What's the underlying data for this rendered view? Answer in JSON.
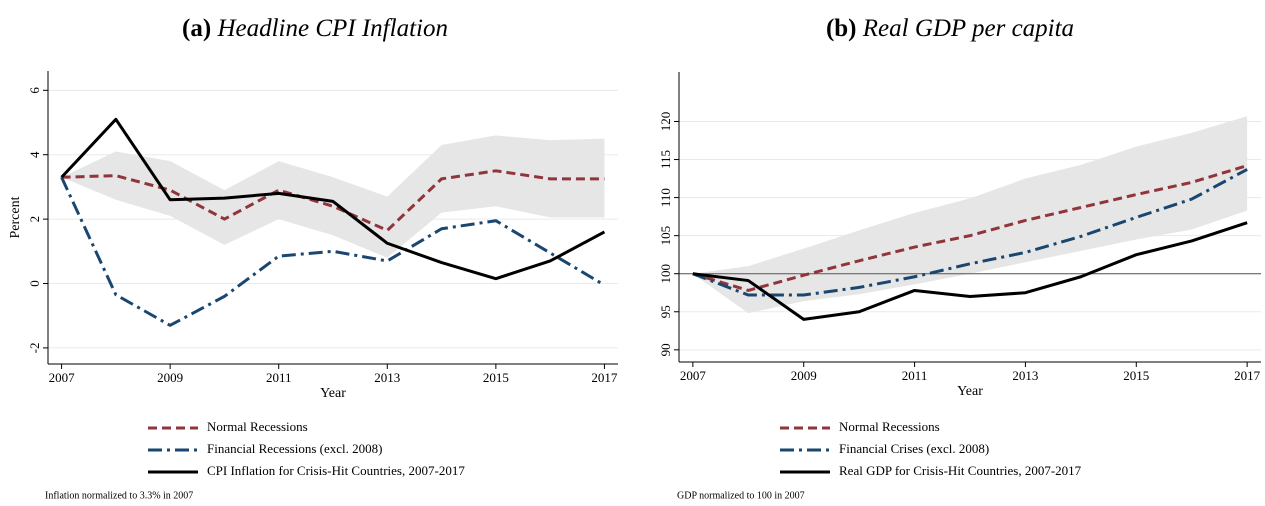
{
  "chart_data": [
    {
      "type": "line",
      "panel_label": "(a)",
      "title": "Headline CPI Inflation",
      "x": [
        2007,
        2008,
        2009,
        2010,
        2011,
        2012,
        2013,
        2014,
        2015,
        2016,
        2017
      ],
      "xlim": [
        2006.75,
        2017.25
      ],
      "xticks": [
        2007,
        2009,
        2011,
        2013,
        2015,
        2017
      ],
      "ylim": [
        -2.5,
        6.6
      ],
      "yticks": [
        -2,
        0,
        2,
        4,
        6
      ],
      "xlabel": "Year",
      "ylabel": "Percent",
      "grid": true,
      "legend": "bottom",
      "band": {
        "color": "#e6e6e6",
        "upper": [
          3.3,
          4.1,
          3.8,
          2.9,
          3.8,
          3.3,
          2.7,
          4.3,
          4.6,
          4.45,
          4.5
        ],
        "lower": [
          3.3,
          2.6,
          2.1,
          1.2,
          2.0,
          1.5,
          0.8,
          2.2,
          2.4,
          2.05,
          2.05
        ]
      },
      "series": [
        {
          "name": "Normal Recessions",
          "color": "#90353b",
          "dash": "dashed",
          "values": [
            3.3,
            3.35,
            2.9,
            2.0,
            2.9,
            2.4,
            1.65,
            3.25,
            3.5,
            3.25,
            3.25
          ]
        },
        {
          "name": "Financial Recessions (excl. 2008)",
          "color": "#1a476f",
          "dash": "dashdot",
          "values": [
            3.3,
            -0.35,
            -1.3,
            -0.4,
            0.85,
            1.0,
            0.7,
            1.7,
            1.95,
            0.95,
            -0.05
          ]
        },
        {
          "name": "CPI Inflation for Crisis-Hit Countries, 2007-2017",
          "color": "#000000",
          "dash": "solid",
          "values": [
            3.3,
            5.1,
            2.6,
            2.65,
            2.8,
            2.55,
            1.25,
            0.65,
            0.15,
            0.7,
            1.6
          ]
        }
      ],
      "note": "Inflation normalized to 3.3% in 2007"
    },
    {
      "type": "line",
      "panel_label": "(b)",
      "title": "Real GDP per capita",
      "x": [
        2007,
        2008,
        2009,
        2010,
        2011,
        2012,
        2013,
        2014,
        2015,
        2016,
        2017
      ],
      "xlim": [
        2006.75,
        2017.25
      ],
      "xticks": [
        2007,
        2009,
        2011,
        2013,
        2015,
        2017
      ],
      "ylim": [
        88.4,
        126.5
      ],
      "yticks": [
        90,
        95,
        100,
        105,
        110,
        115,
        120
      ],
      "xlabel": "Year",
      "grid": true,
      "legend": "bottom",
      "hline": 100,
      "band": {
        "color": "#e6e6e6",
        "upper": [
          100,
          101,
          103.3,
          105.7,
          108,
          109.9,
          112.5,
          114.3,
          116.7,
          118.5,
          120.7
        ],
        "lower": [
          100,
          94.8,
          96.4,
          97.3,
          98.6,
          100,
          101.5,
          103,
          104.5,
          105.8,
          108.3
        ]
      },
      "series": [
        {
          "name": "Normal Recessions",
          "color": "#90353b",
          "dash": "dashed",
          "values": [
            100,
            97.8,
            99.8,
            101.7,
            103.5,
            105,
            107,
            108.7,
            110.4,
            112,
            114.2
          ]
        },
        {
          "name": "Financial Crises (excl. 2008)",
          "color": "#1a476f",
          "dash": "dashdot",
          "values": [
            100,
            97.2,
            97.2,
            98.2,
            99.6,
            101.3,
            102.8,
            104.9,
            107.4,
            109.8,
            113.7
          ]
        },
        {
          "name": "Real GDP for Crisis-Hit Countries, 2007-2017",
          "color": "#000000",
          "dash": "solid",
          "values": [
            100,
            99.1,
            94,
            95,
            97.8,
            97,
            97.5,
            99.6,
            102.5,
            104.3,
            106.7
          ]
        }
      ],
      "note": "GDP normalized to 100 in 2007"
    }
  ]
}
